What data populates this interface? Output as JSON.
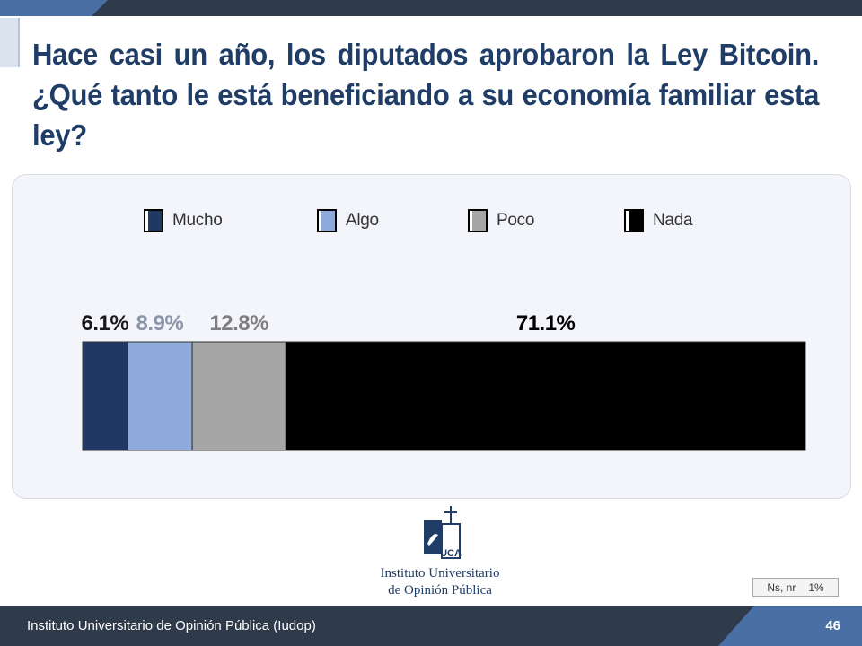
{
  "slide": {
    "title": "Hace casi un año, los diputados aprobaron la Ley Bitcoin. ¿Qué tanto le está beneficiando a su economía familiar esta ley?",
    "footer_text": "Instituto Universitario de Opinión Pública (Iudop)",
    "page_number": "46",
    "ns_label": "Ns, nr",
    "ns_value": "1%",
    "logo_text_line1": "Instituto Universitario",
    "logo_text_line2": "de Opinión Pública",
    "logo_letters": "UCA"
  },
  "colors": {
    "title": "#1f3d66",
    "mucho": "#1f3864",
    "algo": "#8eaadb",
    "poco": "#a6a6a6",
    "nada": "#000000"
  },
  "chart_data": {
    "type": "bar",
    "orientation": "horizontal-stacked",
    "title": "",
    "xlabel": "",
    "ylabel": "",
    "legend_placement": "top",
    "categories": [
      ""
    ],
    "series": [
      {
        "name": "Mucho",
        "values": [
          6.1
        ],
        "label": "6.1%",
        "color": "#1f3864",
        "label_color": "#1a1a1a"
      },
      {
        "name": "Algo",
        "values": [
          8.9
        ],
        "label": "8.9%",
        "color": "#8eaadb",
        "label_color": "#8a96a8"
      },
      {
        "name": "Poco",
        "values": [
          12.8
        ],
        "label": "12.8%",
        "color": "#a6a6a6",
        "label_color": "#7f7f7f"
      },
      {
        "name": "Nada",
        "values": [
          71.1
        ],
        "label": "71.1%",
        "color": "#000000",
        "label_color": "#000000"
      }
    ],
    "xlim": [
      0,
      100
    ]
  }
}
